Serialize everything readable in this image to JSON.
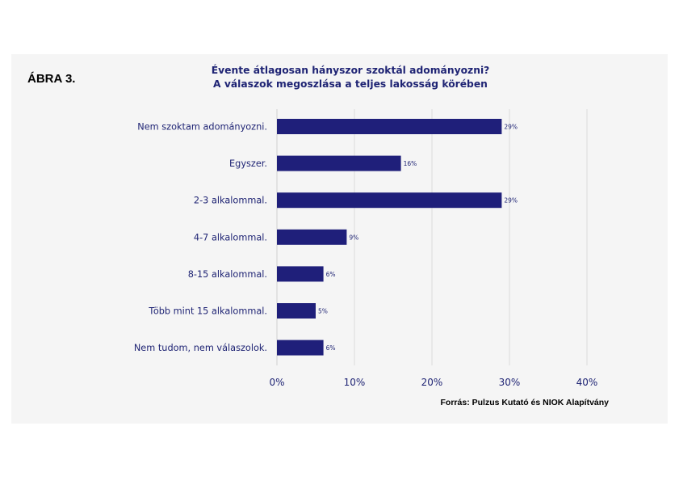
{
  "figure_label": "ÁBRA 3.",
  "source": "Forrás: Pulzus Kutató és NIOK Alapítvány",
  "chart_data": {
    "type": "bar",
    "orientation": "horizontal",
    "title": "Évente átlagosan hányszor szoktál adományozni?",
    "subtitle": "A válaszok megoszlása a teljes lakosság körében",
    "categories": [
      "Nem szoktam adományozni.",
      "Egyszer.",
      "2-3 alkalommal.",
      "4-7 alkalommal.",
      "8-15 alkalommal.",
      "Több mint 15 alkalommal.",
      "Nem tudom, nem válaszolok."
    ],
    "values": [
      29,
      16,
      29,
      9,
      6,
      5,
      6
    ],
    "data_labels": [
      "29%",
      "16%",
      "29%",
      "9%",
      "6%",
      "5%",
      "6%"
    ],
    "xlim": [
      0,
      40
    ],
    "xticks": [
      0,
      10,
      20,
      30,
      40
    ],
    "xtick_labels": [
      "0%",
      "10%",
      "20%",
      "30%",
      "40%"
    ],
    "xlabel": "",
    "ylabel": "",
    "grid": "vertical",
    "bar_color": "#1f1f7a",
    "text_color": "#1f2474",
    "grid_color": "#dcdcdc"
  }
}
